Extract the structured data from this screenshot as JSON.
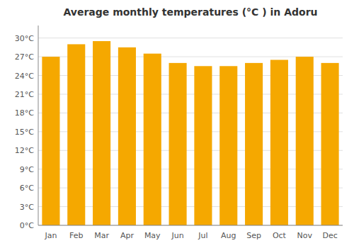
{
  "chart_data": {
    "type": "bar",
    "title": "Average monthly temperatures (°C ) in Adoru",
    "categories": [
      "Jan",
      "Feb",
      "Mar",
      "Apr",
      "May",
      "Jun",
      "Jul",
      "Aug",
      "Sep",
      "Oct",
      "Nov",
      "Dec"
    ],
    "values": [
      27.0,
      29.0,
      29.5,
      28.5,
      27.5,
      26.0,
      25.5,
      25.5,
      26.0,
      26.5,
      27.0,
      26.0
    ],
    "color": "#F5A800",
    "ylim": [
      0,
      32
    ],
    "yticks": [
      {
        "value": 0,
        "label": "0°C"
      },
      {
        "value": 3,
        "label": "3°C"
      },
      {
        "value": 6,
        "label": "6°C"
      },
      {
        "value": 9,
        "label": "9°C"
      },
      {
        "value": 12,
        "label": "12°C"
      },
      {
        "value": 15,
        "label": "15°C"
      },
      {
        "value": 18,
        "label": "18°C"
      },
      {
        "value": 21,
        "label": "21°C"
      },
      {
        "value": 24,
        "label": "24°C"
      },
      {
        "value": 27,
        "label": "27°C"
      },
      {
        "value": 30,
        "label": "30°C"
      }
    ],
    "grid": true
  }
}
